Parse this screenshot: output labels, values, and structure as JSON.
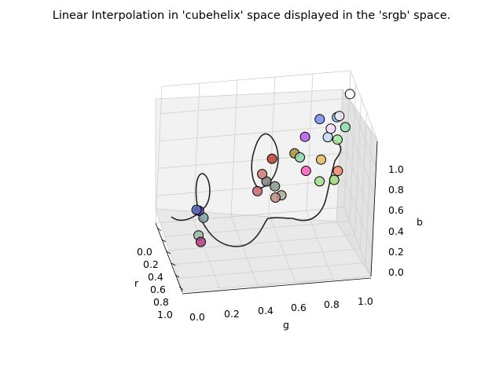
{
  "chart_data": {
    "type": "scatter",
    "projection": "3d",
    "title": "Linear Interpolation in 'cubehelix' space displayed in the 'srgb' space.",
    "xlabel": "r",
    "ylabel": "g",
    "zlabel": "b",
    "xticks": [
      "0.0",
      "0.2",
      "0.4",
      "0.6",
      "0.8",
      "1.0"
    ],
    "yticks": [
      "0.0",
      "0.2",
      "0.4",
      "0.6",
      "0.8",
      "1.0"
    ],
    "zticks": [
      "0.0",
      "0.2",
      "0.4",
      "0.6",
      "0.8",
      "1.0"
    ],
    "xlim": [
      0,
      1
    ],
    "ylim": [
      0,
      1
    ],
    "zlim": [
      0,
      1
    ],
    "grid": true,
    "points": [
      {
        "x": 0.5,
        "y": 0.5,
        "z": 0.5,
        "color": "#808080"
      },
      {
        "x": 0.46,
        "y": 0.54,
        "z": 0.48,
        "color": "#8b9b8d"
      },
      {
        "x": 0.48,
        "y": 0.58,
        "z": 0.4,
        "color": "#a6ab9c"
      },
      {
        "x": 0.55,
        "y": 0.56,
        "z": 0.35,
        "color": "#bf8d80"
      },
      {
        "x": 0.66,
        "y": 0.48,
        "z": 0.35,
        "color": "#c66a6f"
      },
      {
        "x": 0.78,
        "y": 0.52,
        "z": 0.41,
        "color": "#c97f73"
      },
      {
        "x": 0.85,
        "y": 0.58,
        "z": 0.48,
        "color": "#bb4031"
      },
      {
        "x": 0.86,
        "y": 0.7,
        "z": 0.5,
        "color": "#a9903d"
      },
      {
        "x": 0.78,
        "y": 0.83,
        "z": 0.48,
        "color": "#e3bd5a"
      },
      {
        "x": 0.64,
        "y": 0.9,
        "z": 0.46,
        "color": "#f08a6b"
      },
      {
        "x": 0.5,
        "y": 0.86,
        "z": 0.47,
        "color": "#a3d77f"
      },
      {
        "x": 0.42,
        "y": 0.77,
        "z": 0.51,
        "color": "#9fe08d"
      },
      {
        "x": 0.45,
        "y": 0.7,
        "z": 0.58,
        "color": "#ff5db8"
      },
      {
        "x": 0.55,
        "y": 0.68,
        "z": 0.63,
        "color": "#8ed9b0"
      },
      {
        "x": 0.66,
        "y": 0.72,
        "z": 0.72,
        "color": "#b55cf2"
      },
      {
        "x": 0.7,
        "y": 0.8,
        "z": 0.82,
        "color": "#7d8cf0"
      },
      {
        "x": 0.63,
        "y": 0.88,
        "z": 0.86,
        "color": "#7ed1e2"
      },
      {
        "x": 0.52,
        "y": 0.91,
        "z": 0.84,
        "color": "#8ce0a9"
      },
      {
        "x": 0.45,
        "y": 0.86,
        "z": 0.79,
        "color": "#a6e8a0"
      },
      {
        "x": 0.4,
        "y": 0.8,
        "z": 0.84,
        "color": "#c3daf9"
      },
      {
        "x": 0.44,
        "y": 0.82,
        "z": 0.88,
        "color": "#f4dcf7"
      },
      {
        "x": 0.55,
        "y": 0.88,
        "z": 0.91,
        "color": "#f6eaf5"
      },
      {
        "x": 0.73,
        "y": 0.96,
        "z": 0.97,
        "color": "#ffffff"
      },
      {
        "x": 0.35,
        "y": 0.15,
        "z": 0.35,
        "color": "#7ca2a0"
      },
      {
        "x": 0.32,
        "y": 0.12,
        "z": 0.42,
        "color": "#6b3fa6"
      },
      {
        "x": 0.28,
        "y": 0.1,
        "z": 0.45,
        "color": "#5a6fc0"
      },
      {
        "x": 0.3,
        "y": 0.12,
        "z": 0.25,
        "color": "#9ab9a8"
      },
      {
        "x": 0.34,
        "y": 0.14,
        "z": 0.18,
        "color": "#b13f86"
      }
    ]
  }
}
